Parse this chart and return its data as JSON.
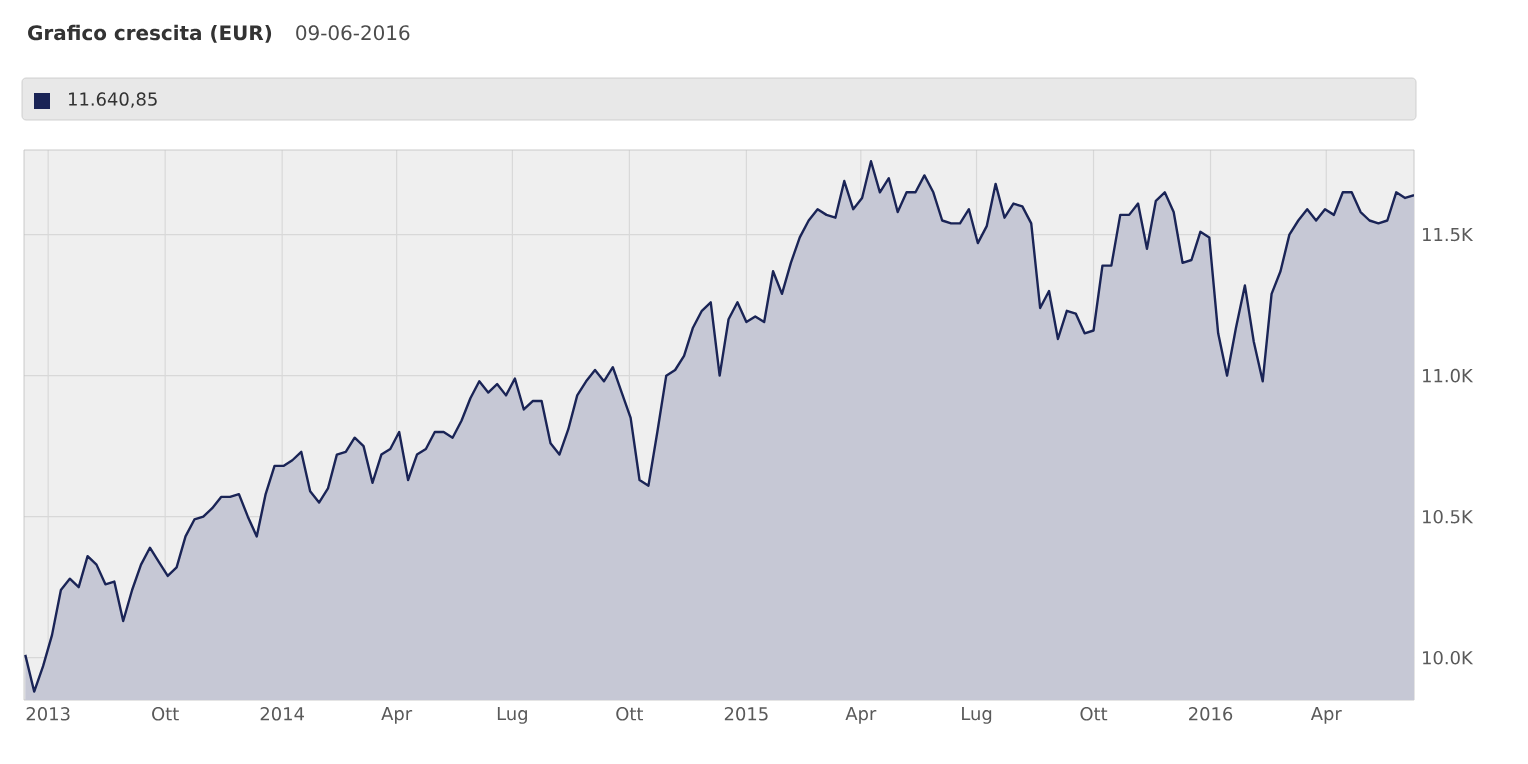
{
  "chart_data": {
    "type": "area",
    "title": "Grafico crescita (EUR)",
    "subtitle": "09-06-2016",
    "annotations": [
      "11.640,85"
    ],
    "x": [
      "2013-06-13",
      "2013-06-20",
      "2013-06-27",
      "2013-07-04",
      "2013-07-11",
      "2013-07-18",
      "2013-07-25",
      "2013-08-01",
      "2013-08-08",
      "2013-08-15",
      "2013-08-22",
      "2013-08-29",
      "2013-09-05",
      "2013-09-12",
      "2013-09-19",
      "2013-09-26",
      "2013-10-03",
      "2013-10-10",
      "2013-10-17",
      "2013-10-24",
      "2013-10-31",
      "2013-11-07",
      "2013-11-14",
      "2013-11-21",
      "2013-11-28",
      "2013-12-05",
      "2013-12-12",
      "2013-12-19",
      "2013-12-26",
      "2014-01-02",
      "2014-01-09",
      "2014-01-16",
      "2014-01-23",
      "2014-01-30",
      "2014-02-06",
      "2014-02-13",
      "2014-02-20",
      "2014-02-27",
      "2014-03-06",
      "2014-03-13",
      "2014-03-20",
      "2014-03-27",
      "2014-04-03",
      "2014-04-10",
      "2014-04-17",
      "2014-04-24",
      "2014-05-01",
      "2014-05-08",
      "2014-05-15",
      "2014-05-22",
      "2014-05-29",
      "2014-06-05",
      "2014-06-12",
      "2014-06-19",
      "2014-06-26",
      "2014-07-03",
      "2014-07-10",
      "2014-07-17",
      "2014-07-24",
      "2014-07-31",
      "2014-08-07",
      "2014-08-14",
      "2014-08-21",
      "2014-08-28",
      "2014-09-04",
      "2014-09-11",
      "2014-09-18",
      "2014-09-25",
      "2014-10-02",
      "2014-10-09",
      "2014-10-16",
      "2014-10-23",
      "2014-10-30",
      "2014-11-06",
      "2014-11-13",
      "2014-11-20",
      "2014-11-27",
      "2014-12-04",
      "2014-12-11",
      "2014-12-18",
      "2014-12-25",
      "2015-01-01",
      "2015-01-08",
      "2015-01-15",
      "2015-01-22",
      "2015-01-29",
      "2015-02-05",
      "2015-02-12",
      "2015-02-19",
      "2015-02-26",
      "2015-03-05",
      "2015-03-12",
      "2015-03-19",
      "2015-03-26",
      "2015-04-02",
      "2015-04-09",
      "2015-04-16",
      "2015-04-23",
      "2015-04-30",
      "2015-05-07",
      "2015-05-14",
      "2015-05-21",
      "2015-05-28",
      "2015-06-04",
      "2015-06-11",
      "2015-06-18",
      "2015-06-25",
      "2015-07-02",
      "2015-07-09",
      "2015-07-16",
      "2015-07-23",
      "2015-07-30",
      "2015-08-06",
      "2015-08-13",
      "2015-08-20",
      "2015-08-27",
      "2015-09-03",
      "2015-09-10",
      "2015-09-17",
      "2015-09-24",
      "2015-10-01",
      "2015-10-08",
      "2015-10-15",
      "2015-10-22",
      "2015-10-29",
      "2015-11-05",
      "2015-11-12",
      "2015-11-19",
      "2015-11-26",
      "2015-12-03",
      "2015-12-10",
      "2015-12-17",
      "2015-12-24",
      "2015-12-31",
      "2016-01-07",
      "2016-01-14",
      "2016-01-21",
      "2016-01-28",
      "2016-02-04",
      "2016-02-11",
      "2016-02-18",
      "2016-02-25",
      "2016-03-03",
      "2016-03-10",
      "2016-03-17",
      "2016-03-24",
      "2016-03-31",
      "2016-04-07",
      "2016-04-14",
      "2016-04-21",
      "2016-04-28",
      "2016-05-05",
      "2016-05-12",
      "2016-05-19",
      "2016-05-26",
      "2016-06-02",
      "2016-06-09"
    ],
    "series": [
      {
        "color": "#1a2456",
        "values": [
          10010,
          9880,
          9970,
          10080,
          10240,
          10280,
          10250,
          10360,
          10330,
          10260,
          10270,
          10130,
          10240,
          10330,
          10390,
          10340,
          10290,
          10320,
          10430,
          10490,
          10500,
          10530,
          10570,
          10570,
          10580,
          10500,
          10430,
          10580,
          10680,
          10680,
          10700,
          10730,
          10590,
          10550,
          10600,
          10720,
          10730,
          10780,
          10750,
          10620,
          10720,
          10740,
          10800,
          10630,
          10720,
          10740,
          10800,
          10800,
          10780,
          10840,
          10920,
          10980,
          10940,
          10970,
          10930,
          10990,
          10880,
          10910,
          10910,
          10760,
          10720,
          10810,
          10930,
          10980,
          11020,
          10980,
          11030,
          10940,
          10850,
          10630,
          10610,
          10800,
          11000,
          11020,
          11070,
          11170,
          11230,
          11260,
          11000,
          11200,
          11260,
          11190,
          11210,
          11190,
          11370,
          11290,
          11400,
          11490,
          11550,
          11590,
          11570,
          11560,
          11690,
          11590,
          11630,
          11760,
          11650,
          11700,
          11580,
          11650,
          11650,
          11710,
          11650,
          11550,
          11540,
          11540,
          11590,
          11470,
          11530,
          11680,
          11560,
          11610,
          11600,
          11540,
          11240,
          11300,
          11130,
          11230,
          11220,
          11150,
          11160,
          11390,
          11390,
          11570,
          11570,
          11610,
          11450,
          11620,
          11650,
          11580,
          11400,
          11410,
          11510,
          11490,
          11150,
          11000,
          11170,
          11320,
          11120,
          10980,
          11290,
          11370,
          11500,
          11550,
          11590,
          11550,
          11590,
          11570,
          11650,
          11650,
          11580,
          11550,
          11540,
          11550,
          11650,
          11630,
          11640
        ]
      }
    ],
    "xlim": [
      "2013-06-12",
      "2016-06-09"
    ],
    "xticks": [
      {
        "value": "2013-07-01",
        "label": "2013"
      },
      {
        "value": "2013-10-01",
        "label": "Ott"
      },
      {
        "value": "2014-01-01",
        "label": "2014"
      },
      {
        "value": "2014-04-01",
        "label": "Apr"
      },
      {
        "value": "2014-07-01",
        "label": "Lug"
      },
      {
        "value": "2014-10-01",
        "label": "Ott"
      },
      {
        "value": "2015-01-01",
        "label": "2015"
      },
      {
        "value": "2015-04-01",
        "label": "Apr"
      },
      {
        "value": "2015-07-01",
        "label": "Lug"
      },
      {
        "value": "2015-10-01",
        "label": "Ott"
      },
      {
        "value": "2016-01-01",
        "label": "2016"
      },
      {
        "value": "2016-04-01",
        "label": "Apr"
      }
    ],
    "ylim": [
      9850,
      11800
    ],
    "yticks": [
      {
        "value": 10000,
        "label": "10.0K"
      },
      {
        "value": 10500,
        "label": "10.5K"
      },
      {
        "value": 11000,
        "label": "11.0K"
      },
      {
        "value": 11500,
        "label": "11.5K"
      }
    ],
    "grid": true
  }
}
